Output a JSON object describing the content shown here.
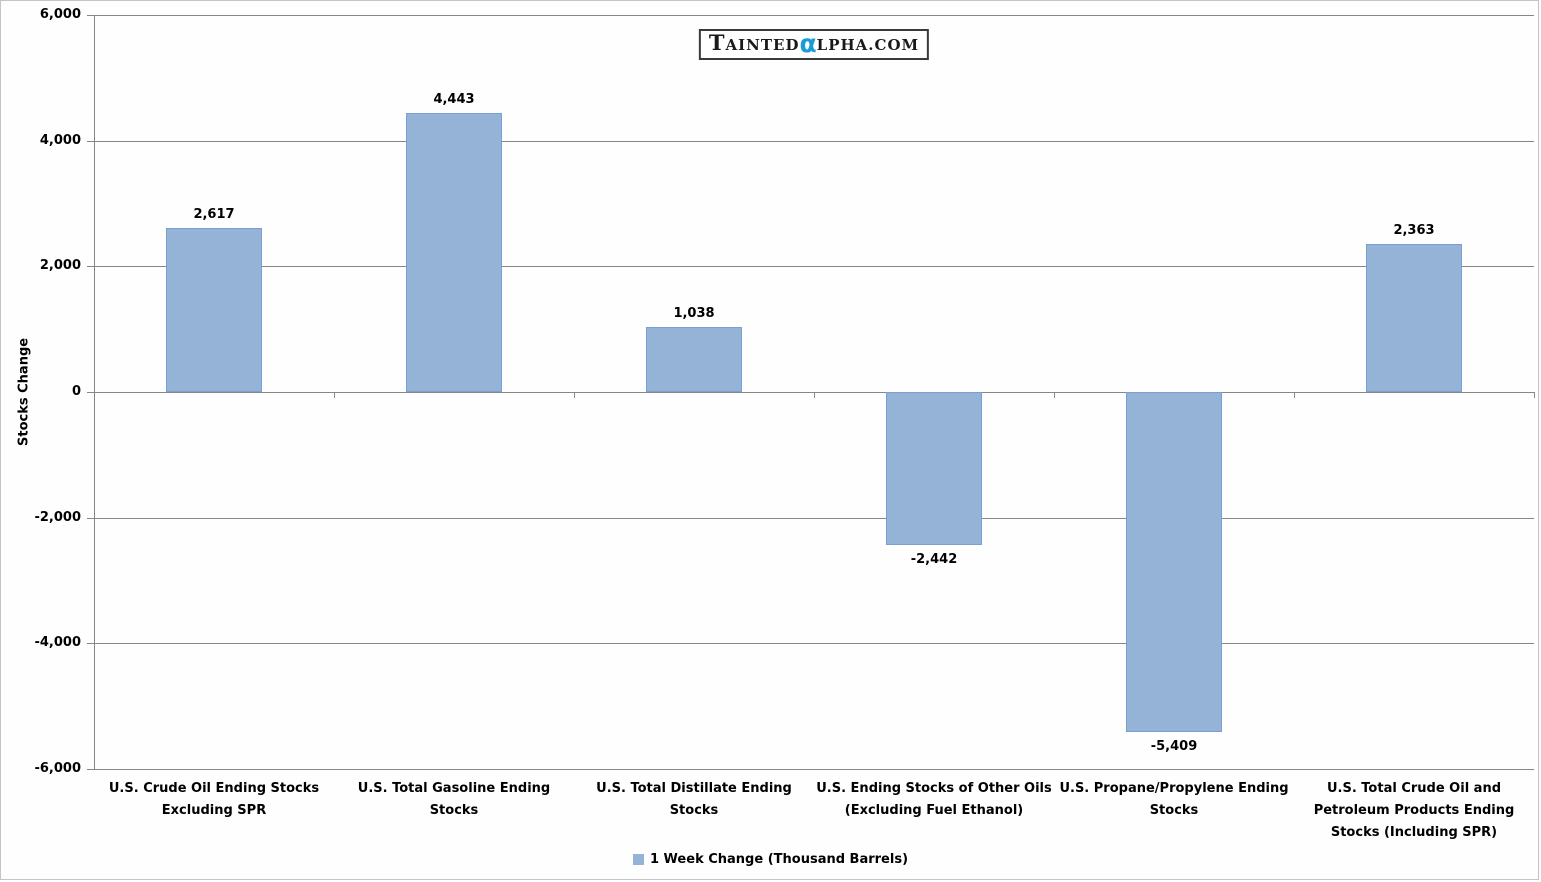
{
  "logo": {
    "t": "T",
    "ainted": "AINTED",
    "alpha": "α",
    "lphacom": "LPHA.COM",
    "alpha_color": "#1b9cd8"
  },
  "chart_data": {
    "type": "bar",
    "title": "",
    "categories": [
      "U.S. Crude Oil Ending Stocks Excluding SPR",
      "U.S. Total Gasoline Ending Stocks",
      "U.S. Total Distillate Ending Stocks",
      "U.S. Ending Stocks of Other Oils (Excluding Fuel Ethanol)",
      "U.S. Propane/Propylene Ending Stocks",
      "U.S. Total Crude Oil and Petroleum Products Ending Stocks (Including SPR)"
    ],
    "values": [
      2617,
      4443,
      1038,
      -2442,
      -5409,
      2363
    ],
    "value_labels": [
      "2,617",
      "4,443",
      "1,038",
      "-2,442",
      "-5,409",
      "2,363"
    ],
    "xlabel": "",
    "ylabel": "Stocks Change",
    "ylim": [
      -6000,
      6000
    ],
    "yticks": [
      {
        "value": 6000,
        "label": "6,000"
      },
      {
        "value": 4000,
        "label": "4,000"
      },
      {
        "value": 2000,
        "label": "2,000"
      },
      {
        "value": 0,
        "label": "0"
      },
      {
        "value": -2000,
        "label": "-2,000"
      },
      {
        "value": -4000,
        "label": "-4,000"
      },
      {
        "value": -6000,
        "label": "-6,000"
      }
    ],
    "grid": true,
    "legend_position": "bottom",
    "legend": [
      {
        "label": "1 Week Change (Thousand Barrels)",
        "color": "#95b3d7"
      }
    ],
    "bar_color": "#95b3d7",
    "bar_border_color": "#7b9fd1",
    "gridline_color": "#878787",
    "axis_color": "#878787"
  }
}
